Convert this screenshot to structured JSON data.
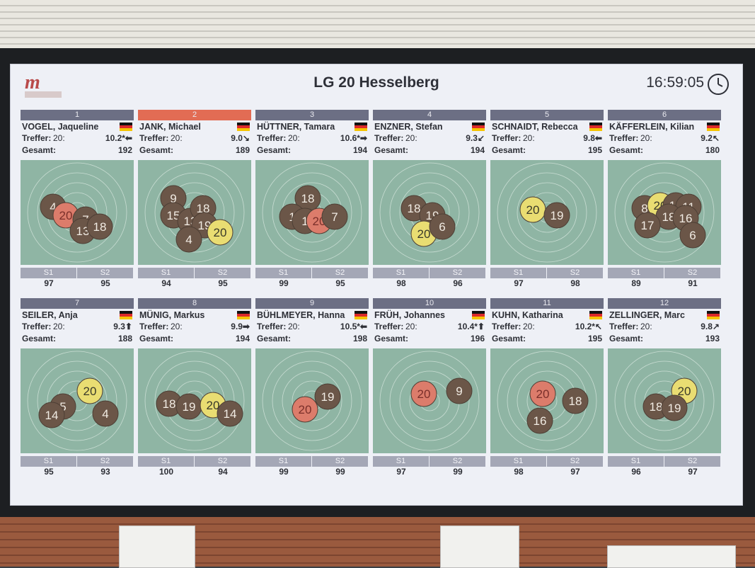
{
  "app": {
    "title": "LG 20 Hesselberg",
    "clock": "16:59:05",
    "logo_letter": "m",
    "colors": {
      "header_bar": "#6c6f84",
      "highlight_bar": "#e26c54",
      "target_bg": "#8fb5a4",
      "shot_fill": "#6b5648",
      "latest_shot": "#e9dd72",
      "best_shot": "#dc7c6b"
    }
  },
  "series_labels": [
    "S1",
    "S2"
  ],
  "labels": {
    "hits": "Treffer:",
    "total": "Gesamt:"
  },
  "shooters": [
    {
      "number": "1",
      "name": "VOGEL, Jaqueline",
      "series_count": "20:",
      "last_shot": "10.2*⬅",
      "total": "192",
      "s1": "97",
      "s2": "95",
      "highlight": false,
      "shots": [
        [
          "4",
          "l"
        ],
        [
          "20",
          "r"
        ],
        [
          "7",
          "n"
        ],
        [
          "13",
          "n"
        ],
        [
          "18",
          "n"
        ]
      ]
    },
    {
      "number": "2",
      "name": "JANK, Michael",
      "series_count": "20:",
      "last_shot": "9.0↘",
      "total": "189",
      "s1": "94",
      "s2": "95",
      "highlight": true,
      "shots": [
        [
          "9",
          "n"
        ],
        [
          "15",
          "n"
        ],
        [
          "13",
          "n"
        ],
        [
          "18",
          "n"
        ],
        [
          "19",
          "n"
        ],
        [
          "20",
          "y"
        ],
        [
          "4",
          "n"
        ]
      ]
    },
    {
      "number": "3",
      "name": "HÜTTNER, Tamara",
      "series_count": "20:",
      "last_shot": "10.6*➡",
      "total": "194",
      "s1": "99",
      "s2": "95",
      "highlight": false,
      "shots": [
        [
          "18",
          "n"
        ],
        [
          "1",
          "n"
        ],
        [
          "1",
          "n"
        ],
        [
          "20",
          "r"
        ],
        [
          "7",
          "n"
        ]
      ]
    },
    {
      "number": "4",
      "name": "ENZNER, Stefan",
      "series_count": "20:",
      "last_shot": "9.3↙",
      "total": "194",
      "s1": "98",
      "s2": "96",
      "highlight": false,
      "shots": [
        [
          "18",
          "n"
        ],
        [
          "19",
          "n"
        ],
        [
          "20",
          "y"
        ],
        [
          "6",
          "n"
        ]
      ]
    },
    {
      "number": "5",
      "name": "SCHNAIDT, Rebecca",
      "series_count": "20:",
      "last_shot": "9.8⬅",
      "total": "195",
      "s1": "97",
      "s2": "98",
      "highlight": false,
      "shots": [
        [
          "20",
          "y"
        ],
        [
          "19",
          "n"
        ]
      ]
    },
    {
      "number": "6",
      "name": "KÄFFERLEIN, Kilian",
      "series_count": "20:",
      "last_shot": "9.2↖",
      "total": "180",
      "s1": "89",
      "s2": "91",
      "highlight": false,
      "shots": [
        [
          "8",
          "n"
        ],
        [
          "20",
          "y"
        ],
        [
          "19",
          "n"
        ],
        [
          "11",
          "n"
        ],
        [
          "18",
          "n"
        ],
        [
          "16",
          "n"
        ],
        [
          "17",
          "n"
        ],
        [
          "6",
          "n"
        ]
      ]
    },
    {
      "number": "7",
      "name": "SEILER, Anja",
      "series_count": "20:",
      "last_shot": "9.3⬆",
      "total": "188",
      "s1": "95",
      "s2": "93",
      "highlight": false,
      "shots": [
        [
          "20",
          "y"
        ],
        [
          "5",
          "n"
        ],
        [
          "14",
          "n"
        ],
        [
          "4",
          "n"
        ]
      ]
    },
    {
      "number": "8",
      "name": "MÜNIG, Markus",
      "series_count": "20:",
      "last_shot": "9.9➡",
      "total": "194",
      "s1": "100",
      "s2": "94",
      "highlight": false,
      "shots": [
        [
          "18",
          "n"
        ],
        [
          "19",
          "n"
        ],
        [
          "20",
          "y"
        ],
        [
          "14",
          "n"
        ]
      ]
    },
    {
      "number": "9",
      "name": "BÜHLMEYER, Hanna",
      "series_count": "20:",
      "last_shot": "10.5*⬅",
      "total": "198",
      "s1": "99",
      "s2": "99",
      "highlight": false,
      "shots": [
        [
          "19",
          "n"
        ],
        [
          "20",
          "r"
        ]
      ]
    },
    {
      "number": "10",
      "name": "FRÜH, Johannes",
      "series_count": "20:",
      "last_shot": "10.4*⬆",
      "total": "196",
      "s1": "97",
      "s2": "99",
      "highlight": false,
      "shots": [
        [
          "20",
          "r"
        ],
        [
          "9",
          "n"
        ]
      ]
    },
    {
      "number": "11",
      "name": "KUHN, Katharina",
      "series_count": "20:",
      "last_shot": "10.2*↖",
      "total": "195",
      "s1": "98",
      "s2": "97",
      "highlight": false,
      "shots": [
        [
          "20",
          "r"
        ],
        [
          "18",
          "n"
        ],
        [
          "16",
          "n"
        ]
      ]
    },
    {
      "number": "12",
      "name": "ZELLINGER, Marc",
      "series_count": "20:",
      "last_shot": "9.8↗",
      "total": "193",
      "s1": "96",
      "s2": "97",
      "highlight": false,
      "shots": [
        [
          "20",
          "y"
        ],
        [
          "18",
          "n"
        ],
        [
          "19",
          "n"
        ]
      ]
    }
  ]
}
